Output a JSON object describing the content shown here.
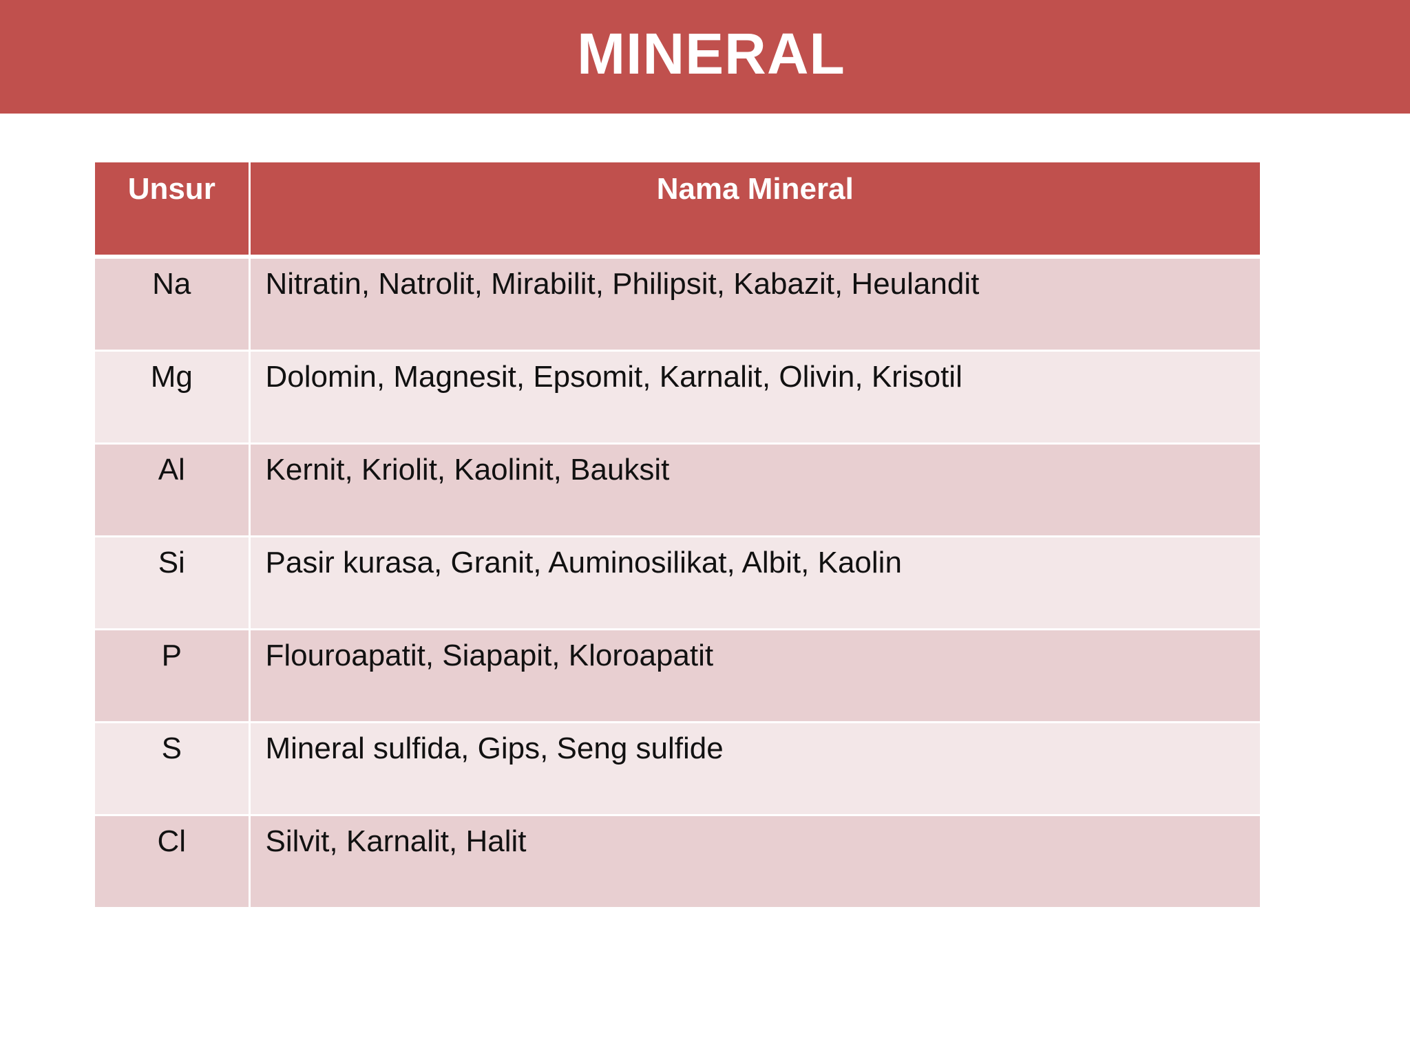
{
  "slide": {
    "title": "MINERAL"
  },
  "table": {
    "headers": [
      "Unsur",
      "Nama Mineral"
    ],
    "rows": [
      {
        "unsur": "Na",
        "nama": "Nitratin, Natrolit, Mirabilit, Philipsit, Kabazit, Heulandit"
      },
      {
        "unsur": "Mg",
        "nama": "Dolomin, Magnesit, Epsomit, Karnalit, Olivin, Krisotil"
      },
      {
        "unsur": "Al",
        "nama": "Kernit, Kriolit, Kaolinit, Bauksit"
      },
      {
        "unsur": "Si",
        "nama": "Pasir kurasa, Granit, Auminosilikat, Albit, Kaolin"
      },
      {
        "unsur": "P",
        "nama": "Flouroapatit, Siapapit, Kloroapatit"
      },
      {
        "unsur": "S",
        "nama": "Mineral sulfida, Gips, Seng sulfide"
      },
      {
        "unsur": "Cl",
        "nama": "Silvit, Karnalit, Halit"
      }
    ]
  },
  "colors": {
    "accent": "#c0504d",
    "row_odd": "#e8cfd1",
    "row_even": "#f3e7e8"
  }
}
